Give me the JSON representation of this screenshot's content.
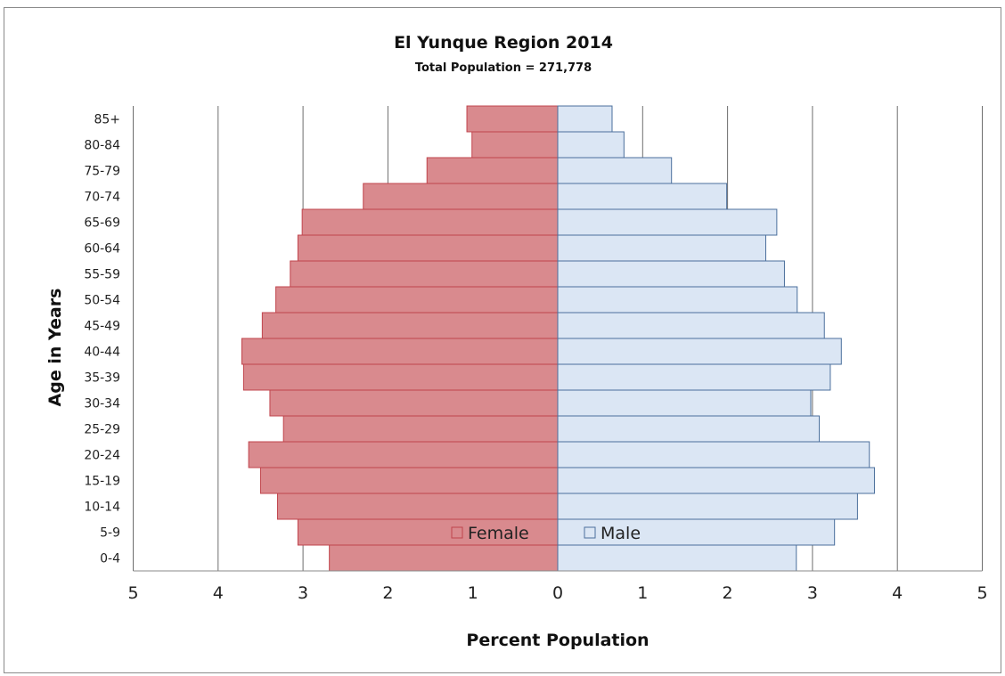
{
  "chart_data": {
    "type": "bar",
    "orientation": "horizontal-population-pyramid",
    "title": "El Yunque Region 2014",
    "subtitle": "Total Population = 271,778",
    "xlabel": "Percent Population",
    "ylabel": "Age in Years",
    "categories": [
      "0-4",
      "5-9",
      "10-14",
      "15-19",
      "20-24",
      "25-29",
      "30-34",
      "35-39",
      "40-44",
      "45-49",
      "50-54",
      "55-59",
      "60-64",
      "65-69",
      "70-74",
      "75-79",
      "80-84",
      "85+"
    ],
    "x_ticks": [
      "5",
      "4",
      "3",
      "2",
      "1",
      "0",
      "1",
      "2",
      "3",
      "4",
      "5"
    ],
    "xlim": [
      -5,
      5
    ],
    "grid": "vertical",
    "legend_placement": "bottom-center",
    "series": [
      {
        "name": "Female",
        "color": "#d98a8e",
        "edge": "#c0444c",
        "values": [
          2.69,
          3.06,
          3.3,
          3.5,
          3.64,
          3.23,
          3.39,
          3.7,
          3.72,
          3.48,
          3.32,
          3.15,
          3.06,
          3.01,
          2.29,
          1.54,
          1.01,
          1.07
        ]
      },
      {
        "name": "Male",
        "color": "#dbe6f4",
        "edge": "#4b6f9c",
        "values": [
          2.81,
          3.26,
          3.53,
          3.73,
          3.67,
          3.08,
          2.98,
          3.21,
          3.34,
          3.14,
          2.82,
          2.67,
          2.45,
          2.58,
          1.99,
          1.34,
          0.78,
          0.64
        ]
      }
    ]
  }
}
